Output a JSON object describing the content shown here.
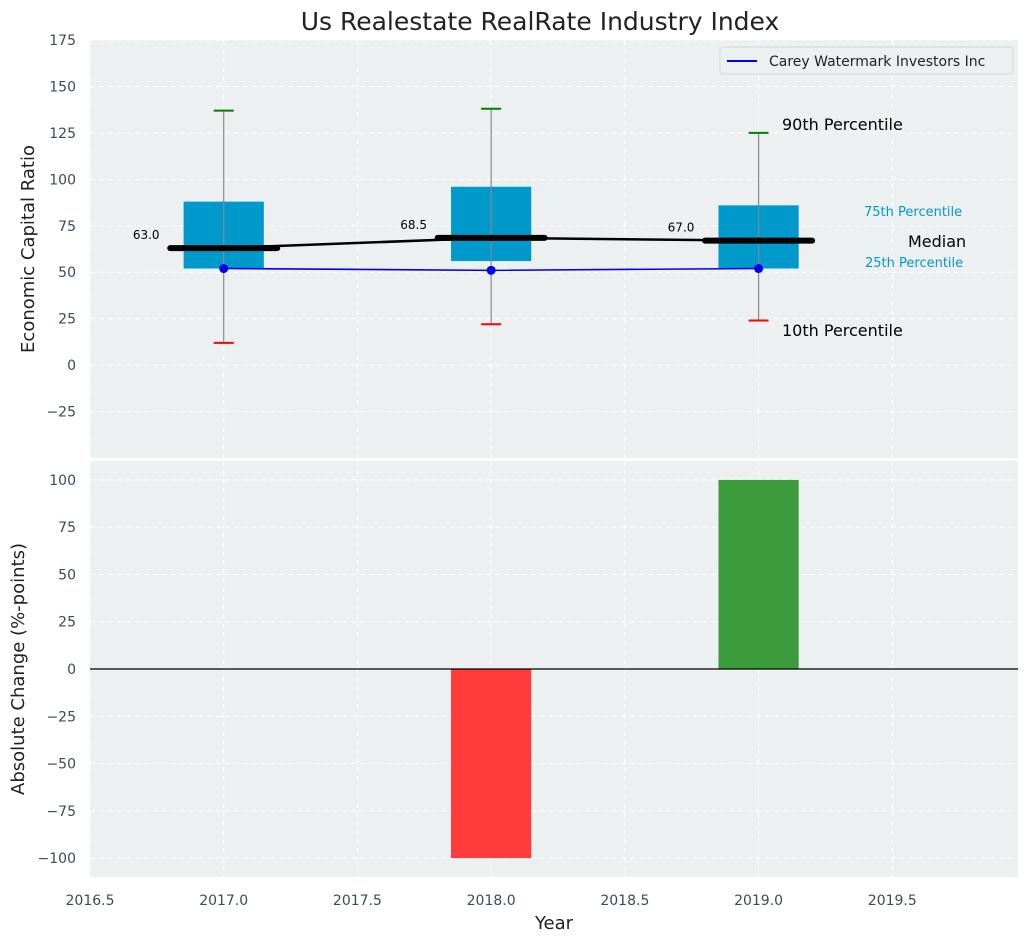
{
  "chart_data": [
    {
      "type": "box",
      "title": "Us Realestate RealRate Industry Index",
      "ylabel": "Economic Capital Ratio",
      "ylim": [
        -50,
        175
      ],
      "yticks": [
        -25,
        0,
        25,
        50,
        75,
        100,
        125,
        150,
        175
      ],
      "x": [
        2017,
        2018,
        2019
      ],
      "p10": [
        12,
        22,
        24
      ],
      "p25": [
        52,
        56,
        52
      ],
      "median": [
        63.0,
        68.5,
        67.0
      ],
      "p75": [
        88,
        96,
        86
      ],
      "p90": [
        137,
        138,
        125
      ],
      "median_labels": [
        "63.0",
        "68.5",
        "67.0"
      ],
      "series": [
        {
          "name": "Carey Watermark Investors Inc",
          "values": [
            52,
            51,
            52
          ],
          "color": "#0000ee"
        }
      ],
      "legend": "top-right",
      "annotations": {
        "p90": "90th Percentile",
        "p75": "75th Percentile",
        "median": "Median",
        "p25": "25th Percentile",
        "p10": "10th Percentile"
      },
      "colors": {
        "box": "#0099cc",
        "median": "#000000",
        "p90_cap": "#008000",
        "p10_cap": "#ff0000",
        "background": "#ecf0f1"
      },
      "grid": true
    },
    {
      "type": "bar",
      "ylabel": "Absolute Change (%-points)",
      "xlabel": "Year",
      "x": [
        2018,
        2019
      ],
      "values": [
        -100,
        100
      ],
      "bar_colors": [
        "#ff3b3b",
        "#3c9c3c"
      ],
      "ylim": [
        -110,
        110
      ],
      "yticks": [
        -100,
        -75,
        -50,
        -25,
        0,
        25,
        50,
        75,
        100
      ],
      "xlim": [
        2016.5,
        2019.97
      ],
      "xticks": [
        2016.5,
        2017.0,
        2017.5,
        2018.0,
        2018.5,
        2019.0,
        2019.5
      ],
      "grid": true
    }
  ]
}
